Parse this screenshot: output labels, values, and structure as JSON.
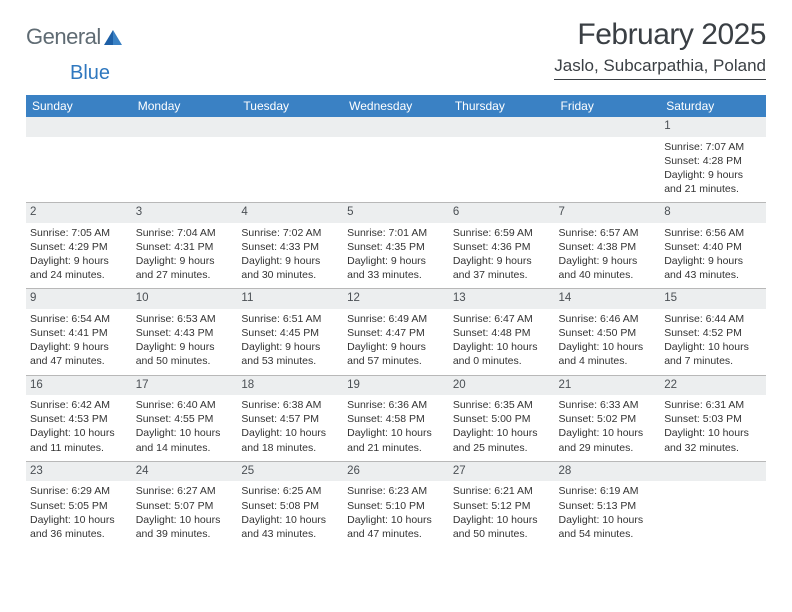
{
  "brand": {
    "text1": "General",
    "text2": "Blue",
    "color1": "#5f6b73",
    "color2": "#2f78bf"
  },
  "title": "February 2025",
  "location": "Jaslo, Subcarpathia, Poland",
  "header_bg": "#3a81c4",
  "daynum_bg": "#eceeef",
  "border_color": "#b8b8b8",
  "weekdays": [
    "Sunday",
    "Monday",
    "Tuesday",
    "Wednesday",
    "Thursday",
    "Friday",
    "Saturday"
  ],
  "weeks": [
    [
      null,
      null,
      null,
      null,
      null,
      null,
      {
        "d": "1",
        "sr": "Sunrise: 7:07 AM",
        "ss": "Sunset: 4:28 PM",
        "dl1": "Daylight: 9 hours",
        "dl2": "and 21 minutes."
      }
    ],
    [
      {
        "d": "2",
        "sr": "Sunrise: 7:05 AM",
        "ss": "Sunset: 4:29 PM",
        "dl1": "Daylight: 9 hours",
        "dl2": "and 24 minutes."
      },
      {
        "d": "3",
        "sr": "Sunrise: 7:04 AM",
        "ss": "Sunset: 4:31 PM",
        "dl1": "Daylight: 9 hours",
        "dl2": "and 27 minutes."
      },
      {
        "d": "4",
        "sr": "Sunrise: 7:02 AM",
        "ss": "Sunset: 4:33 PM",
        "dl1": "Daylight: 9 hours",
        "dl2": "and 30 minutes."
      },
      {
        "d": "5",
        "sr": "Sunrise: 7:01 AM",
        "ss": "Sunset: 4:35 PM",
        "dl1": "Daylight: 9 hours",
        "dl2": "and 33 minutes."
      },
      {
        "d": "6",
        "sr": "Sunrise: 6:59 AM",
        "ss": "Sunset: 4:36 PM",
        "dl1": "Daylight: 9 hours",
        "dl2": "and 37 minutes."
      },
      {
        "d": "7",
        "sr": "Sunrise: 6:57 AM",
        "ss": "Sunset: 4:38 PM",
        "dl1": "Daylight: 9 hours",
        "dl2": "and 40 minutes."
      },
      {
        "d": "8",
        "sr": "Sunrise: 6:56 AM",
        "ss": "Sunset: 4:40 PM",
        "dl1": "Daylight: 9 hours",
        "dl2": "and 43 minutes."
      }
    ],
    [
      {
        "d": "9",
        "sr": "Sunrise: 6:54 AM",
        "ss": "Sunset: 4:41 PM",
        "dl1": "Daylight: 9 hours",
        "dl2": "and 47 minutes."
      },
      {
        "d": "10",
        "sr": "Sunrise: 6:53 AM",
        "ss": "Sunset: 4:43 PM",
        "dl1": "Daylight: 9 hours",
        "dl2": "and 50 minutes."
      },
      {
        "d": "11",
        "sr": "Sunrise: 6:51 AM",
        "ss": "Sunset: 4:45 PM",
        "dl1": "Daylight: 9 hours",
        "dl2": "and 53 minutes."
      },
      {
        "d": "12",
        "sr": "Sunrise: 6:49 AM",
        "ss": "Sunset: 4:47 PM",
        "dl1": "Daylight: 9 hours",
        "dl2": "and 57 minutes."
      },
      {
        "d": "13",
        "sr": "Sunrise: 6:47 AM",
        "ss": "Sunset: 4:48 PM",
        "dl1": "Daylight: 10 hours",
        "dl2": "and 0 minutes."
      },
      {
        "d": "14",
        "sr": "Sunrise: 6:46 AM",
        "ss": "Sunset: 4:50 PM",
        "dl1": "Daylight: 10 hours",
        "dl2": "and 4 minutes."
      },
      {
        "d": "15",
        "sr": "Sunrise: 6:44 AM",
        "ss": "Sunset: 4:52 PM",
        "dl1": "Daylight: 10 hours",
        "dl2": "and 7 minutes."
      }
    ],
    [
      {
        "d": "16",
        "sr": "Sunrise: 6:42 AM",
        "ss": "Sunset: 4:53 PM",
        "dl1": "Daylight: 10 hours",
        "dl2": "and 11 minutes."
      },
      {
        "d": "17",
        "sr": "Sunrise: 6:40 AM",
        "ss": "Sunset: 4:55 PM",
        "dl1": "Daylight: 10 hours",
        "dl2": "and 14 minutes."
      },
      {
        "d": "18",
        "sr": "Sunrise: 6:38 AM",
        "ss": "Sunset: 4:57 PM",
        "dl1": "Daylight: 10 hours",
        "dl2": "and 18 minutes."
      },
      {
        "d": "19",
        "sr": "Sunrise: 6:36 AM",
        "ss": "Sunset: 4:58 PM",
        "dl1": "Daylight: 10 hours",
        "dl2": "and 21 minutes."
      },
      {
        "d": "20",
        "sr": "Sunrise: 6:35 AM",
        "ss": "Sunset: 5:00 PM",
        "dl1": "Daylight: 10 hours",
        "dl2": "and 25 minutes."
      },
      {
        "d": "21",
        "sr": "Sunrise: 6:33 AM",
        "ss": "Sunset: 5:02 PM",
        "dl1": "Daylight: 10 hours",
        "dl2": "and 29 minutes."
      },
      {
        "d": "22",
        "sr": "Sunrise: 6:31 AM",
        "ss": "Sunset: 5:03 PM",
        "dl1": "Daylight: 10 hours",
        "dl2": "and 32 minutes."
      }
    ],
    [
      {
        "d": "23",
        "sr": "Sunrise: 6:29 AM",
        "ss": "Sunset: 5:05 PM",
        "dl1": "Daylight: 10 hours",
        "dl2": "and 36 minutes."
      },
      {
        "d": "24",
        "sr": "Sunrise: 6:27 AM",
        "ss": "Sunset: 5:07 PM",
        "dl1": "Daylight: 10 hours",
        "dl2": "and 39 minutes."
      },
      {
        "d": "25",
        "sr": "Sunrise: 6:25 AM",
        "ss": "Sunset: 5:08 PM",
        "dl1": "Daylight: 10 hours",
        "dl2": "and 43 minutes."
      },
      {
        "d": "26",
        "sr": "Sunrise: 6:23 AM",
        "ss": "Sunset: 5:10 PM",
        "dl1": "Daylight: 10 hours",
        "dl2": "and 47 minutes."
      },
      {
        "d": "27",
        "sr": "Sunrise: 6:21 AM",
        "ss": "Sunset: 5:12 PM",
        "dl1": "Daylight: 10 hours",
        "dl2": "and 50 minutes."
      },
      {
        "d": "28",
        "sr": "Sunrise: 6:19 AM",
        "ss": "Sunset: 5:13 PM",
        "dl1": "Daylight: 10 hours",
        "dl2": "and 54 minutes."
      },
      null
    ]
  ]
}
